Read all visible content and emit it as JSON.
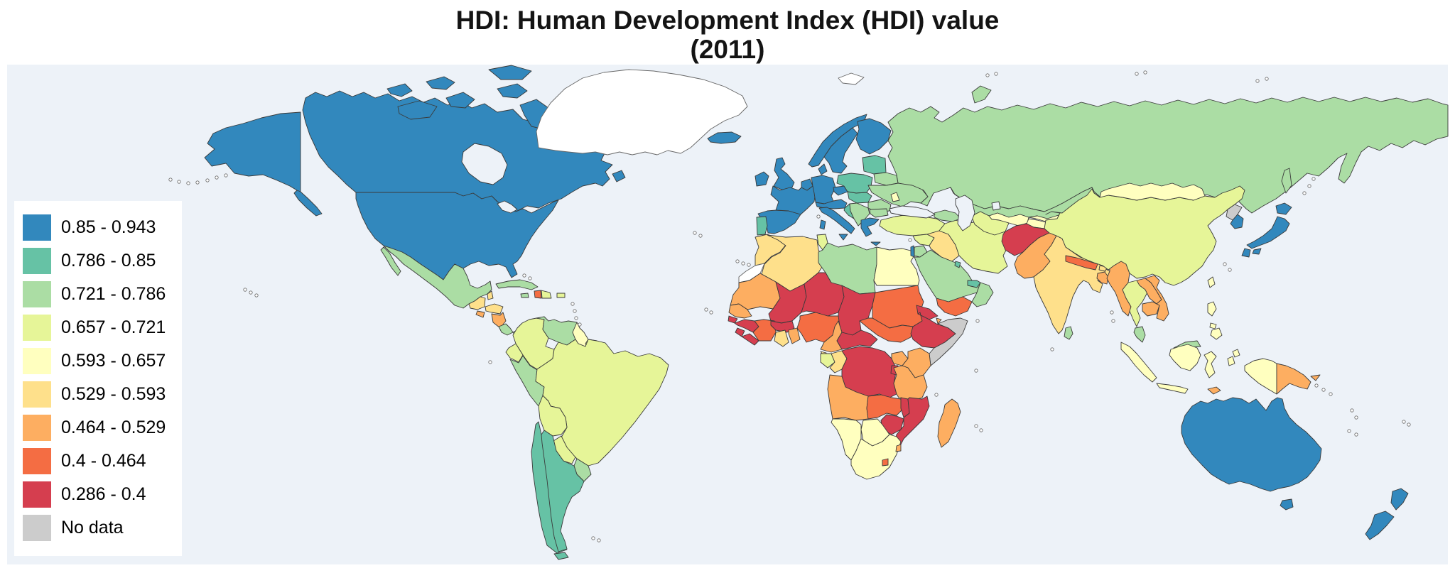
{
  "title": {
    "line1": "HDI: Human Development Index (HDI) value",
    "line2": "(2011)"
  },
  "legend": {
    "items": [
      {
        "label": "0.85 - 0.943",
        "color": "#3288bd"
      },
      {
        "label": "0.786 - 0.85",
        "color": "#66c2a5"
      },
      {
        "label": "0.721 - 0.786",
        "color": "#abdda4"
      },
      {
        "label": "0.657 - 0.721",
        "color": "#e6f598"
      },
      {
        "label": "0.593 - 0.657",
        "color": "#ffffbf"
      },
      {
        "label": "0.529 - 0.593",
        "color": "#fee08b"
      },
      {
        "label": "0.464 - 0.529",
        "color": "#fdae61"
      },
      {
        "label": "0.4 - 0.464",
        "color": "#f46d43"
      },
      {
        "label": "0.286 - 0.4",
        "color": "#d53e4f"
      },
      {
        "label": "No data",
        "color": "#cccccc"
      }
    ]
  },
  "map": {
    "ocean_color": "#edf2f8",
    "border_color": "#3a3a3a",
    "unfilled_color": "#ffffff",
    "unfilled_border_color": "#666666",
    "regions": [
      {
        "name": "russia",
        "cat": 2
      },
      {
        "name": "sakhalin",
        "cat": 2
      },
      {
        "name": "novaya-zemlya",
        "cat": 2
      },
      {
        "name": "canada",
        "cat": 0
      },
      {
        "name": "canada-arctic",
        "cat": 0
      },
      {
        "name": "newfoundland",
        "cat": 0
      },
      {
        "name": "usa",
        "cat": 0
      },
      {
        "name": "alaska",
        "cat": 0
      },
      {
        "name": "greenland",
        "cat": "none"
      },
      {
        "name": "svalbard",
        "cat": "none"
      },
      {
        "name": "mexico",
        "cat": 2
      },
      {
        "name": "guatemala",
        "cat": 5
      },
      {
        "name": "belize",
        "cat": 5
      },
      {
        "name": "honduras",
        "cat": 5
      },
      {
        "name": "el-salvador",
        "cat": 6
      },
      {
        "name": "nicaragua",
        "cat": 6
      },
      {
        "name": "costa-rica",
        "cat": 2
      },
      {
        "name": "panama",
        "cat": 2
      },
      {
        "name": "cuba",
        "cat": 2
      },
      {
        "name": "haiti",
        "cat": 7
      },
      {
        "name": "dominican-republic",
        "cat": 3
      },
      {
        "name": "jamaica",
        "cat": 2
      },
      {
        "name": "puerto-rico",
        "cat": 3
      },
      {
        "name": "colombia",
        "cat": 3
      },
      {
        "name": "venezuela",
        "cat": 2
      },
      {
        "name": "guyana",
        "cat": 4
      },
      {
        "name": "suriname",
        "cat": 3
      },
      {
        "name": "french-guiana",
        "cat": "none"
      },
      {
        "name": "ecuador",
        "cat": 3
      },
      {
        "name": "peru",
        "cat": 2
      },
      {
        "name": "brazil",
        "cat": 3
      },
      {
        "name": "bolivia",
        "cat": 3
      },
      {
        "name": "paraguay",
        "cat": 3
      },
      {
        "name": "uruguay",
        "cat": 2
      },
      {
        "name": "chile",
        "cat": 1
      },
      {
        "name": "argentina",
        "cat": 1
      },
      {
        "name": "tierra-del-fuego",
        "cat": 1
      },
      {
        "name": "iceland",
        "cat": 0
      },
      {
        "name": "ireland",
        "cat": 0
      },
      {
        "name": "uk",
        "cat": 0
      },
      {
        "name": "spain",
        "cat": 0
      },
      {
        "name": "portugal",
        "cat": 1
      },
      {
        "name": "france",
        "cat": 0
      },
      {
        "name": "benelux",
        "cat": 0
      },
      {
        "name": "germany",
        "cat": 0
      },
      {
        "name": "denmark",
        "cat": 0
      },
      {
        "name": "norway",
        "cat": 0
      },
      {
        "name": "sweden",
        "cat": 0
      },
      {
        "name": "finland",
        "cat": 0
      },
      {
        "name": "alpine",
        "cat": 0
      },
      {
        "name": "italy",
        "cat": 0
      },
      {
        "name": "czech",
        "cat": 0
      },
      {
        "name": "poland",
        "cat": 1
      },
      {
        "name": "baltics",
        "cat": 1
      },
      {
        "name": "belarus",
        "cat": 2
      },
      {
        "name": "ukraine",
        "cat": 2
      },
      {
        "name": "moldova",
        "cat": 4
      },
      {
        "name": "slovakia-hungary",
        "cat": 1
      },
      {
        "name": "romania",
        "cat": 2
      },
      {
        "name": "croatia",
        "cat": 1
      },
      {
        "name": "balkans",
        "cat": 2
      },
      {
        "name": "bulgaria",
        "cat": 2
      },
      {
        "name": "greece",
        "cat": 0
      },
      {
        "name": "morocco",
        "cat": 5
      },
      {
        "name": "western-sahara",
        "cat": "none"
      },
      {
        "name": "algeria",
        "cat": 5
      },
      {
        "name": "tunisia",
        "cat": 3
      },
      {
        "name": "libya",
        "cat": 2
      },
      {
        "name": "egypt",
        "cat": 4
      },
      {
        "name": "mauritania",
        "cat": 6
      },
      {
        "name": "mali",
        "cat": 8
      },
      {
        "name": "niger",
        "cat": 8
      },
      {
        "name": "chad",
        "cat": 8
      },
      {
        "name": "sudan",
        "cat": 7
      },
      {
        "name": "south-sudan",
        "cat": 7
      },
      {
        "name": "eritrea",
        "cat": 8
      },
      {
        "name": "djibouti",
        "cat": 6
      },
      {
        "name": "ethiopia",
        "cat": 8
      },
      {
        "name": "somalia",
        "cat": 9
      },
      {
        "name": "senegal",
        "cat": 6
      },
      {
        "name": "guinea-bissau",
        "cat": 8
      },
      {
        "name": "guinea",
        "cat": 8
      },
      {
        "name": "sierra-leone",
        "cat": 8
      },
      {
        "name": "liberia",
        "cat": 8
      },
      {
        "name": "cote-divoire",
        "cat": 7
      },
      {
        "name": "burkina-faso",
        "cat": 8
      },
      {
        "name": "ghana",
        "cat": 5
      },
      {
        "name": "togo-benin",
        "cat": 6
      },
      {
        "name": "nigeria",
        "cat": 7
      },
      {
        "name": "cameroon",
        "cat": 6
      },
      {
        "name": "car",
        "cat": 8
      },
      {
        "name": "eq-guinea",
        "cat": 5
      },
      {
        "name": "gabon",
        "cat": 3
      },
      {
        "name": "congo",
        "cat": 5
      },
      {
        "name": "dr-congo",
        "cat": 8
      },
      {
        "name": "uganda",
        "cat": 6
      },
      {
        "name": "kenya",
        "cat": 6
      },
      {
        "name": "rwanda-burundi",
        "cat": 8
      },
      {
        "name": "tanzania",
        "cat": 6
      },
      {
        "name": "angola",
        "cat": 6
      },
      {
        "name": "zambia",
        "cat": 7
      },
      {
        "name": "malawi",
        "cat": 8
      },
      {
        "name": "mozambique",
        "cat": 8
      },
      {
        "name": "zimbabwe",
        "cat": 8
      },
      {
        "name": "botswana",
        "cat": 4
      },
      {
        "name": "namibia",
        "cat": 4
      },
      {
        "name": "south-africa",
        "cat": 4
      },
      {
        "name": "lesotho",
        "cat": 7
      },
      {
        "name": "swaziland",
        "cat": 6
      },
      {
        "name": "madagascar",
        "cat": 6
      },
      {
        "name": "turkey",
        "cat": 3
      },
      {
        "name": "syria",
        "cat": 3
      },
      {
        "name": "israel",
        "cat": 0
      },
      {
        "name": "jordan",
        "cat": 2
      },
      {
        "name": "iraq",
        "cat": 5
      },
      {
        "name": "saudi-arabia",
        "cat": 2
      },
      {
        "name": "yemen",
        "cat": 7
      },
      {
        "name": "oman",
        "cat": 2
      },
      {
        "name": "uae",
        "cat": 1
      },
      {
        "name": "kuwait",
        "cat": 1
      },
      {
        "name": "iran",
        "cat": 3
      },
      {
        "name": "caucasus",
        "cat": 2
      },
      {
        "name": "kazakhstan",
        "cat": 2
      },
      {
        "name": "uzbekistan",
        "cat": 4
      },
      {
        "name": "turkmenistan",
        "cat": 3
      },
      {
        "name": "kyrgyzstan",
        "cat": 4
      },
      {
        "name": "tajikistan",
        "cat": 4
      },
      {
        "name": "afghanistan",
        "cat": 8
      },
      {
        "name": "pakistan",
        "cat": 6
      },
      {
        "name": "india",
        "cat": 5
      },
      {
        "name": "nepal",
        "cat": 7
      },
      {
        "name": "bhutan",
        "cat": 5
      },
      {
        "name": "bangladesh",
        "cat": 6
      },
      {
        "name": "sri-lanka",
        "cat": 2
      },
      {
        "name": "myanmar",
        "cat": 6
      },
      {
        "name": "thailand",
        "cat": 3
      },
      {
        "name": "laos",
        "cat": 6
      },
      {
        "name": "cambodia",
        "cat": 6
      },
      {
        "name": "vietnam",
        "cat": 6
      },
      {
        "name": "malaysia-peninsula",
        "cat": 2
      },
      {
        "name": "borneo-malaysia",
        "cat": 2
      },
      {
        "name": "china",
        "cat": 3
      },
      {
        "name": "mongolia",
        "cat": 4
      },
      {
        "name": "north-korea",
        "cat": 9
      },
      {
        "name": "south-korea",
        "cat": 0
      },
      {
        "name": "japan",
        "cat": 0
      },
      {
        "name": "taiwan",
        "cat": 4
      },
      {
        "name": "sumatra",
        "cat": 4
      },
      {
        "name": "java",
        "cat": 4
      },
      {
        "name": "borneo-indonesia",
        "cat": 4
      },
      {
        "name": "sulawesi",
        "cat": 4
      },
      {
        "name": "moluccas",
        "cat": 4
      },
      {
        "name": "west-papua",
        "cat": 4
      },
      {
        "name": "png",
        "cat": 6
      },
      {
        "name": "timor-leste",
        "cat": 6
      },
      {
        "name": "philippines",
        "cat": 4
      },
      {
        "name": "australia",
        "cat": 0
      },
      {
        "name": "new-zealand",
        "cat": 0
      },
      {
        "name": "hudson-bay",
        "cat": "lake"
      },
      {
        "name": "great-lakes",
        "cat": "lake"
      },
      {
        "name": "black-sea",
        "cat": "lake"
      },
      {
        "name": "caspian-sea",
        "cat": "lake"
      },
      {
        "name": "aral-sea",
        "cat": "lake"
      }
    ]
  }
}
